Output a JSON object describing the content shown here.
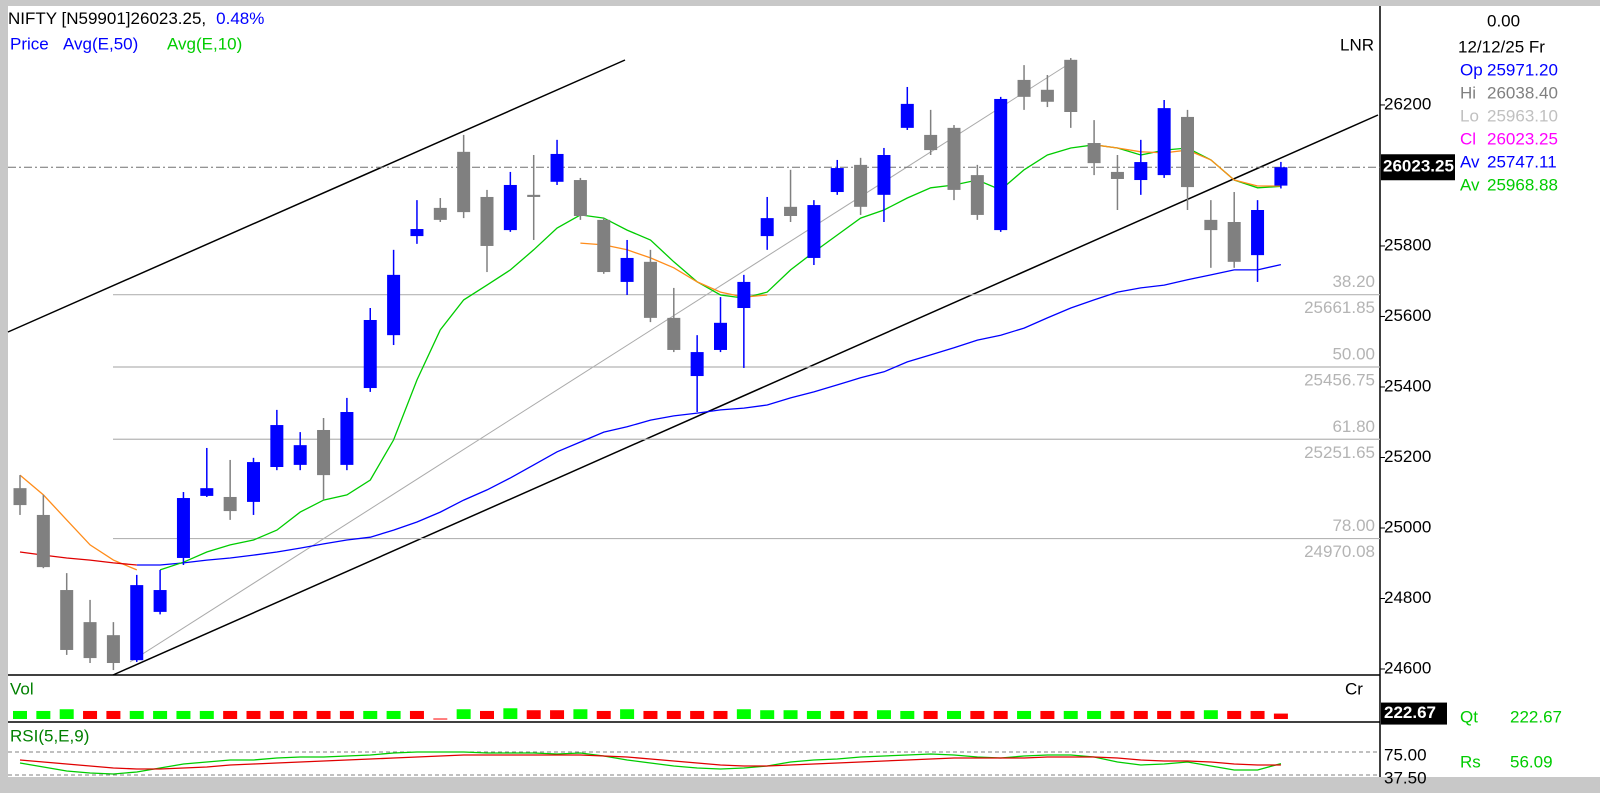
{
  "chart_data": [
    {
      "type": "candlestick",
      "title": "NIFTY [N59901]",
      "price_text": "26023.25,",
      "change_text": "0.48%",
      "price_label": "Price",
      "panel_label": "LNR",
      "top_value": "0.00",
      "date": "12/12/25 Fr",
      "info": [
        {
          "label": "Op",
          "value": "25971.20",
          "color": "#0000ff"
        },
        {
          "label": "Hi",
          "value": "26038.40",
          "color": "#808080"
        },
        {
          "label": "Lo",
          "value": "25963.10",
          "color": "#c0c0c0"
        },
        {
          "label": "Cl",
          "value": "26023.25",
          "color": "#ff00ff"
        },
        {
          "label": "Av",
          "value": "25747.11",
          "color": "#0000ff"
        },
        {
          "label": "Av",
          "value": "25968.88",
          "color": "#00cc00"
        }
      ],
      "up_color": "#0000ff",
      "down_color": "#808080",
      "open": [
        25113,
        25037,
        24824,
        24733,
        24696,
        24625,
        24762,
        24915,
        25091,
        25088,
        25074,
        25173,
        25179,
        25278,
        25179,
        25397,
        25547,
        25828,
        25908,
        26067,
        25939,
        25845,
        25945,
        25982,
        25987,
        25874,
        25698,
        25755,
        25596,
        25431,
        25505,
        25624,
        25828,
        25911,
        25766,
        25953,
        26030,
        25945,
        26135,
        26115,
        26135,
        26001,
        25845,
        26271,
        26243,
        26328,
        26092,
        26010,
        25987,
        26001,
        26166,
        25874,
        25868,
        25774,
        25971.2
      ],
      "high": [
        25150,
        25094,
        24872,
        24796,
        24733,
        24867,
        24881,
        25102,
        25227,
        25193,
        25199,
        25335,
        25272,
        25312,
        25369,
        25624,
        25789,
        25930,
        25936,
        26115,
        25959,
        26010,
        26058,
        26101,
        25993,
        25879,
        25817,
        25789,
        25681,
        25547,
        25655,
        25718,
        25939,
        26016,
        25930,
        26044,
        26050,
        26078,
        26251,
        26186,
        26143,
        26030,
        26223,
        26313,
        26285,
        26333,
        26157,
        26058,
        26101,
        26214,
        26186,
        25930,
        25953,
        25930,
        26038.4
      ],
      "low": [
        25037,
        24886,
        24640,
        24617,
        24597,
        24620,
        24755,
        24895,
        25088,
        25023,
        25037,
        25164,
        25164,
        25079,
        25164,
        25386,
        25519,
        25806,
        25868,
        25879,
        25726,
        25840,
        25817,
        25973,
        25874,
        25721,
        25661,
        25584,
        25499,
        25329,
        25499,
        25454,
        25789,
        25868,
        25746,
        25945,
        25888,
        25868,
        26129,
        26058,
        25930,
        25874,
        25840,
        26186,
        26194,
        26135,
        26001,
        25902,
        25945,
        25993,
        25902,
        25738,
        25738,
        25698,
        25963.1
      ],
      "close": [
        25065,
        24889,
        24654,
        24631,
        24617,
        24838,
        24824,
        25085,
        25113,
        25048,
        25187,
        25292,
        25235,
        25150,
        25329,
        25590,
        25718,
        25848,
        25874,
        25896,
        25800,
        25973,
        25939,
        26061,
        25885,
        25726,
        25766,
        25596,
        25505,
        25499,
        25582,
        25698,
        25879,
        25885,
        25916,
        26021,
        25911,
        26058,
        26203,
        26072,
        25959,
        25888,
        26217,
        26223,
        26209,
        26180,
        26035,
        25990,
        26038,
        26191,
        25967,
        25845,
        25755,
        25902,
        26023.25
      ],
      "series": [
        {
          "name": "Avg(E,50)",
          "color": "#0000ff",
          "values": [
            null,
            null,
            null,
            null,
            null,
            24895,
            24895,
            24901,
            24909,
            24915,
            24923,
            24932,
            24943,
            24955,
            24966,
            24974,
            24994,
            25017,
            25045,
            25079,
            25108,
            25142,
            25179,
            25216,
            25244,
            25272,
            25287,
            25306,
            25318,
            25326,
            25335,
            25340,
            25349,
            25369,
            25386,
            25406,
            25426,
            25443,
            25471,
            25491,
            25511,
            25533,
            25547,
            25567,
            25596,
            25624,
            25647,
            25669,
            25681,
            25689,
            25704,
            25718,
            25732,
            25732,
            25747.11
          ]
        },
        {
          "name": "Avg(E,10)",
          "color": "#00cc00",
          "values": [
            null,
            null,
            null,
            null,
            null,
            null,
            24881,
            24903,
            24932,
            24952,
            24966,
            24994,
            25045,
            25079,
            25094,
            25136,
            25250,
            25420,
            25562,
            25647,
            25689,
            25732,
            25789,
            25851,
            25888,
            25879,
            25845,
            25817,
            25755,
            25698,
            25661,
            25652,
            25669,
            25732,
            25783,
            25831,
            25879,
            25902,
            25936,
            25965,
            25973,
            25987,
            25959,
            26016,
            26058,
            26078,
            26087,
            26078,
            26058,
            26072,
            26078,
            26044,
            25987,
            25965,
            25968.88
          ]
        },
        {
          "color": "#ff8c1a",
          "values": [
            25150,
            25094,
            25023,
            24952,
            24909,
            24881,
            null,
            null,
            null,
            null,
            null,
            null,
            null,
            null,
            null,
            null,
            null,
            null,
            null,
            null,
            null,
            null,
            null,
            null,
            25808,
            25803,
            25789,
            25766,
            25738,
            25698,
            25669,
            25655,
            25661,
            null,
            null,
            null,
            null,
            null,
            null,
            null,
            null,
            null,
            null,
            null,
            null,
            null,
            26087,
            26078,
            26067,
            26064,
            26072,
            26044,
            25987,
            25970,
            25970
          ]
        },
        {
          "color": "#e00000",
          "values": [
            24932,
            24923,
            24915,
            24909,
            24901,
            24895,
            null,
            null,
            null,
            null,
            null,
            null,
            null,
            null,
            null,
            null,
            null,
            null,
            null,
            null,
            null,
            null,
            null,
            null,
            null,
            null,
            null,
            null,
            null,
            null,
            null,
            null,
            null,
            null,
            null,
            null,
            null,
            null,
            null,
            null,
            null,
            null,
            null,
            null,
            null,
            null,
            null,
            null,
            null,
            null,
            null,
            null,
            null,
            null,
            null
          ]
        }
      ],
      "fib_levels": [
        {
          "ratio": "38.20",
          "value": 25661.85
        },
        {
          "ratio": "50.00",
          "value": 25456.75
        },
        {
          "ratio": "61.80",
          "value": 25251.65
        },
        {
          "ratio": "78.00",
          "value": 24970.08
        }
      ],
      "ylim": [
        24583,
        26475
      ],
      "yticks": [
        24600,
        24800,
        25000,
        25200,
        25400,
        25600,
        25800,
        26200
      ]
    },
    {
      "type": "bar",
      "label": "Vol",
      "unit_label": "Cr",
      "legend_label": "Qt",
      "values": [
        330,
        330,
        400,
        330,
        330,
        330,
        330,
        330,
        330,
        330,
        330,
        330,
        330,
        330,
        330,
        330,
        330,
        330,
        20,
        400,
        330,
        440,
        360,
        360,
        400,
        330,
        400,
        330,
        330,
        330,
        330,
        400,
        360,
        360,
        330,
        330,
        330,
        360,
        330,
        330,
        330,
        330,
        330,
        330,
        330,
        330,
        330,
        330,
        330,
        330,
        330,
        360,
        330,
        330,
        222.67
      ],
      "colors": [
        "#00ff00",
        "#00ff00",
        "#00ff00",
        "#ff0000",
        "#ff0000",
        "#00ff00",
        "#00ff00",
        "#00ff00",
        "#00ff00",
        "#ff0000",
        "#ff0000",
        "#ff0000",
        "#ff0000",
        "#ff0000",
        "#ff0000",
        "#00ff00",
        "#00ff00",
        "#ff0000",
        "#ff0000",
        "#00ff00",
        "#ff0000",
        "#00ff00",
        "#ff0000",
        "#ff0000",
        "#00ff00",
        "#ff0000",
        "#00ff00",
        "#ff0000",
        "#ff0000",
        "#ff0000",
        "#ff0000",
        "#00ff00",
        "#00ff00",
        "#00ff00",
        "#00ff00",
        "#ff0000",
        "#ff0000",
        "#00ff00",
        "#00ff00",
        "#ff0000",
        "#00ff00",
        "#ff0000",
        "#ff0000",
        "#00ff00",
        "#ff0000",
        "#00ff00",
        "#00ff00",
        "#ff0000",
        "#ff0000",
        "#ff0000",
        "#ff0000",
        "#00ff00",
        "#ff0000",
        "#ff0000",
        "#ff0000"
      ],
      "ylim": [
        0,
        1600
      ],
      "yticks": [
        222.67
      ]
    },
    {
      "type": "line",
      "label": "RSI(5,E,9)",
      "legend_label": "Rs",
      "series": [
        {
          "color": "#00cc00",
          "values": [
            57.1,
            50.5,
            44.0,
            40.7,
            39.1,
            42.4,
            48.9,
            55.4,
            58.7,
            62.0,
            62.0,
            65.2,
            66.8,
            66.8,
            68.5,
            70.1,
            73.4,
            75,
            75,
            75,
            73.4,
            73.4,
            73.4,
            71.7,
            73.4,
            68.5,
            62.0,
            57.1,
            52.2,
            48.9,
            47.3,
            48.9,
            52.2,
            58.7,
            62.0,
            63.6,
            66.8,
            68.5,
            70.1,
            71.7,
            70.1,
            66.8,
            65.2,
            68.5,
            70.1,
            70.1,
            66.8,
            58.7,
            53.8,
            55.4,
            58.7,
            52.2,
            45.6,
            45.6,
            56.09
          ]
        },
        {
          "color": "#e00000",
          "values": [
            62.0,
            58.7,
            55.4,
            52.2,
            48.9,
            47.3,
            47.3,
            48.9,
            50.5,
            53.8,
            55.4,
            57.1,
            58.7,
            60.3,
            62.0,
            63.6,
            65.2,
            66.8,
            68.5,
            70.1,
            70.1,
            70.1,
            70.1,
            70.1,
            70.1,
            68.5,
            66.8,
            63.6,
            60.3,
            57.1,
            53.8,
            52.2,
            52.2,
            53.8,
            55.4,
            57.1,
            58.7,
            60.3,
            62.0,
            63.6,
            65.2,
            65.2,
            65.2,
            65.2,
            66.8,
            66.8,
            66.8,
            65.2,
            62.0,
            60.3,
            60.3,
            58.7,
            55.4,
            53.8,
            53.8
          ]
        }
      ],
      "ylim": [
        34.2,
        120.7
      ],
      "yticks": [
        {
          "value": 75,
          "label": "75.00"
        },
        {
          "value": 37.5,
          "label": "37.50"
        }
      ]
    }
  ]
}
